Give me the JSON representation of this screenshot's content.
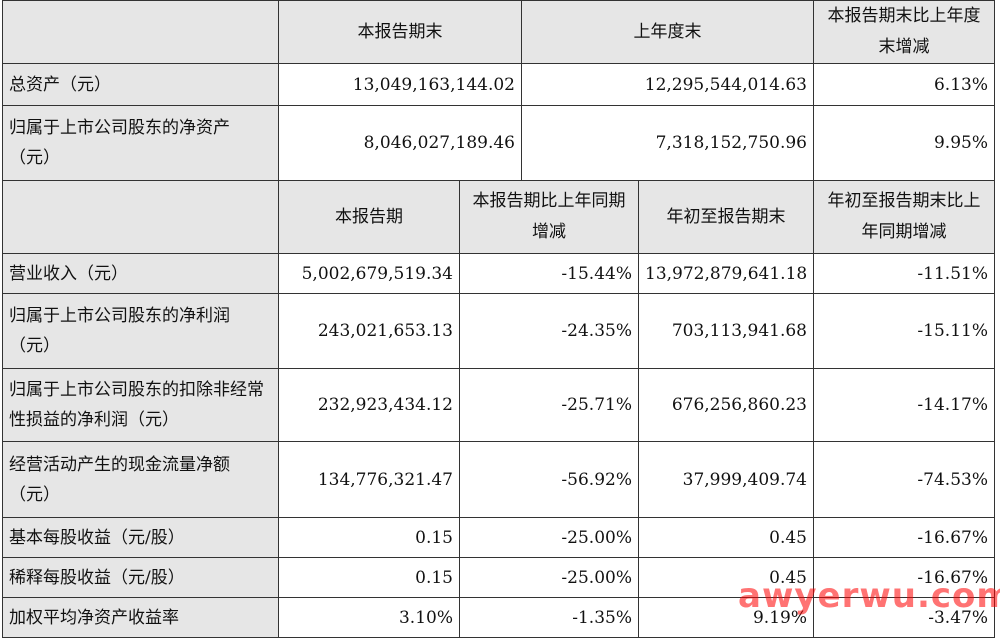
{
  "top_section": {
    "headers": [
      "本报告期末",
      "上年度末",
      "本报告期末比上年度末增减"
    ],
    "rows": [
      {
        "label": "总资产（元）",
        "values": [
          "13,049,163,144.02",
          "12,295,544,014.63",
          "6.13%"
        ]
      },
      {
        "label": "归属于上市公司股东的净资产（元）",
        "values": [
          "8,046,027,189.46",
          "7,318,152,750.96",
          "9.95%"
        ]
      }
    ]
  },
  "bottom_section": {
    "headers": [
      "本报告期",
      "本报告期比上年同期增减",
      "年初至报告期末",
      "年初至报告期末比上年同期增减"
    ],
    "rows": [
      {
        "label": "营业收入（元）",
        "values": [
          "5,002,679,519.34",
          "-15.44%",
          "13,972,879,641.18",
          "-11.51%"
        ]
      },
      {
        "label": "归属于上市公司股东的净利润（元）",
        "values": [
          "243,021,653.13",
          "-24.35%",
          "703,113,941.68",
          "-15.11%"
        ]
      },
      {
        "label": "归属于上市公司股东的扣除非经常性损益的净利润（元）",
        "values": [
          "232,923,434.12",
          "-25.71%",
          "676,256,860.23",
          "-14.17%"
        ]
      },
      {
        "label": "经营活动产生的现金流量净额（元）",
        "values": [
          "134,776,321.47",
          "-56.92%",
          "37,999,409.74",
          "-74.53%"
        ]
      },
      {
        "label": "基本每股收益（元/股）",
        "values": [
          "0.15",
          "-25.00%",
          "0.45",
          "-16.67%"
        ]
      },
      {
        "label": "稀释每股收益（元/股）",
        "values": [
          "0.15",
          "-25.00%",
          "0.45",
          "-16.67%"
        ]
      },
      {
        "label": "加权平均净资产收益率",
        "values": [
          "3.10%",
          "-1.35%",
          "9.19%",
          "-3.47%"
        ]
      }
    ]
  },
  "watermark": {
    "text": "awyerwu.com",
    "color": "#ff0000"
  }
}
